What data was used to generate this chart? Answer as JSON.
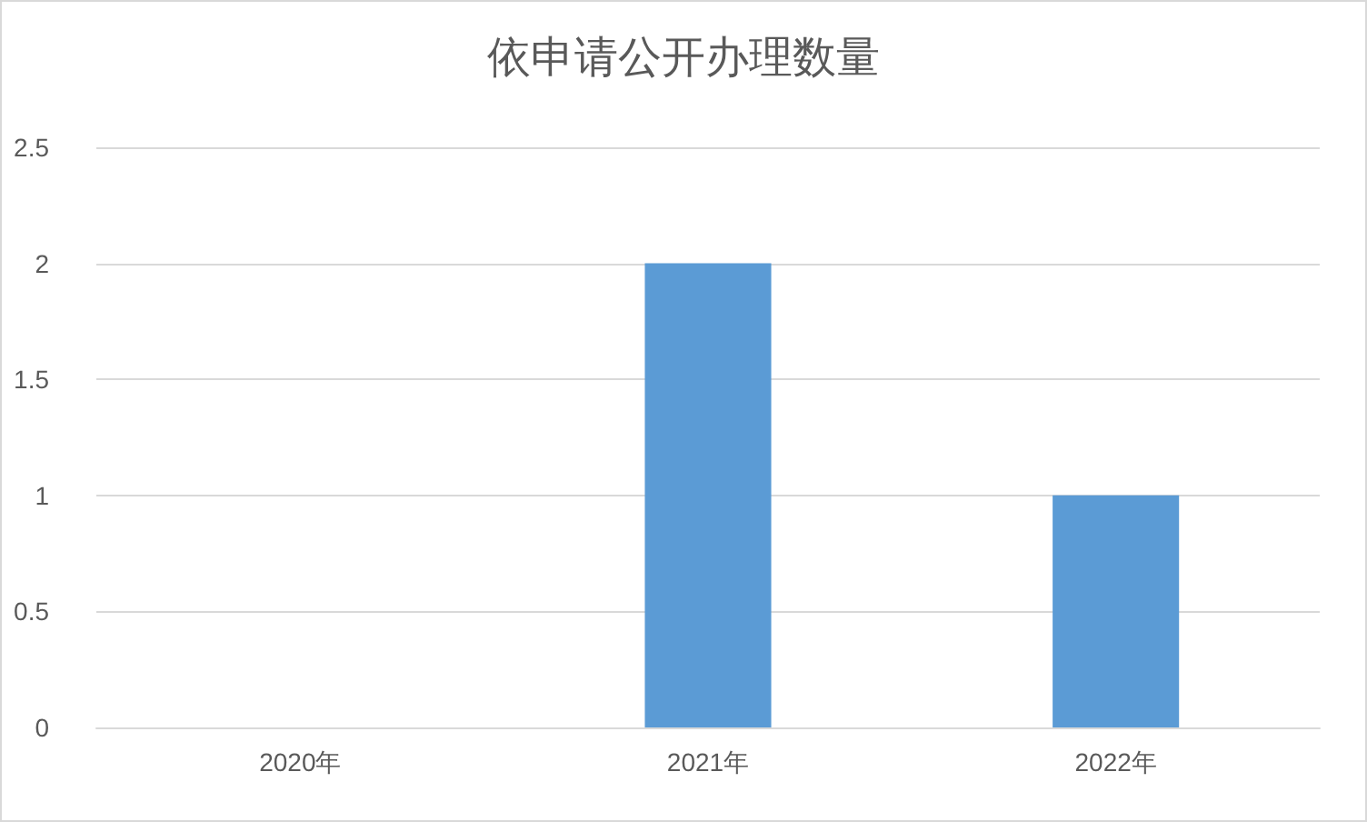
{
  "chart_data": {
    "type": "bar",
    "title": "依申请公开办理数量",
    "categories": [
      "2020年",
      "2021年",
      "2022年"
    ],
    "values": [
      0,
      2,
      1
    ],
    "color": "#5b9bd5",
    "ylim": [
      0,
      2.5
    ],
    "yticks": [
      0,
      0.5,
      1,
      1.5,
      2,
      2.5
    ],
    "grid": "y"
  }
}
